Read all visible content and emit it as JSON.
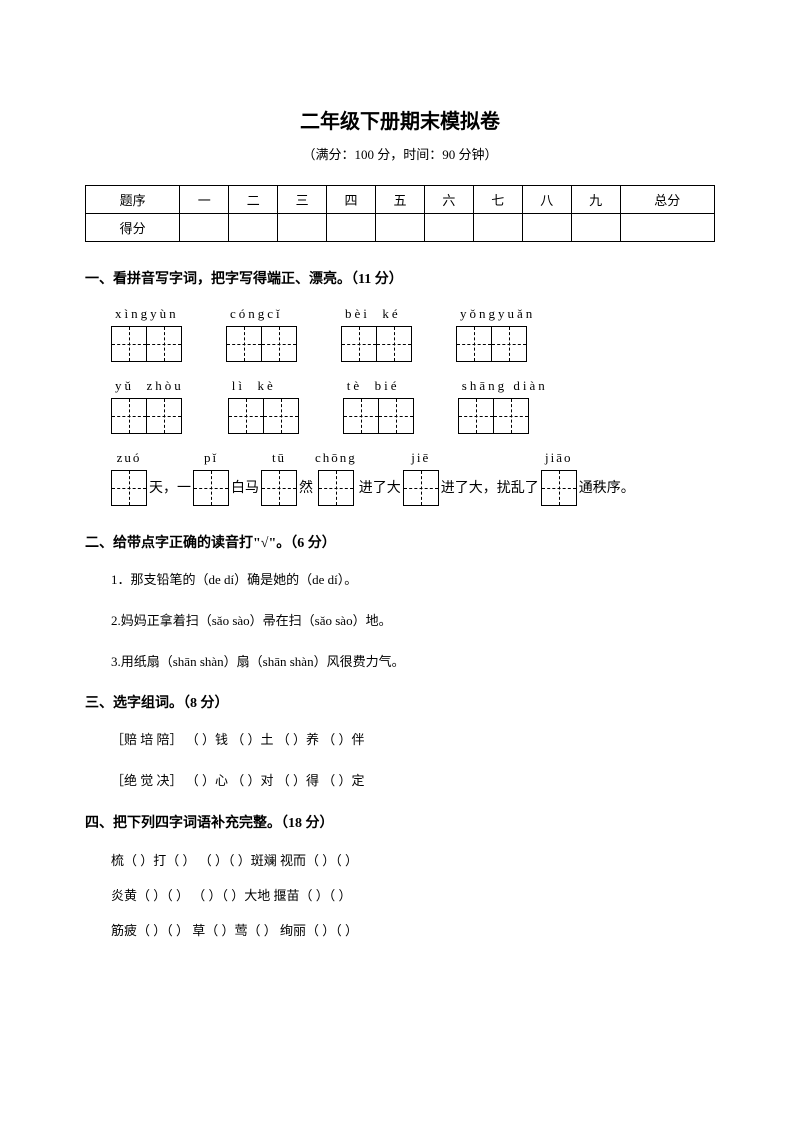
{
  "title": "二年级下册期末模拟卷",
  "subtitle": "（满分：100 分，时间：90 分钟）",
  "score_table": {
    "headers": [
      "题序",
      "一",
      "二",
      "三",
      "四",
      "五",
      "六",
      "七",
      "八",
      "九",
      "总分"
    ],
    "row_label": "得分"
  },
  "sec1": {
    "heading": "一、看拼音写字词，把字写得端正、漂亮。（11 分）",
    "row1": [
      {
        "pinyin": "xìngyùn",
        "boxes": 2
      },
      {
        "pinyin": "cóngcǐ",
        "boxes": 2
      },
      {
        "pinyin": "bèi  ké",
        "boxes": 2
      },
      {
        "pinyin": "yǒngyuǎn",
        "boxes": 2
      }
    ],
    "row2": [
      {
        "pinyin": "yǔ  zhòu",
        "boxes": 2
      },
      {
        "pinyin": "lì  kè",
        "boxes": 2
      },
      {
        "pinyin": "tè  bié",
        "boxes": 2
      },
      {
        "pinyin": "shāng diàn",
        "boxes": 2
      }
    ],
    "sentence": {
      "parts": [
        {
          "pinyin": "zuó",
          "boxes": 1
        },
        {
          "text": "天，一"
        },
        {
          "pinyin": "pǐ",
          "boxes": 1
        },
        {
          "text": "白马"
        },
        {
          "pinyin": "tū",
          "boxes": 1
        },
        {
          "text": "然"
        },
        {
          "pinyin": "chōng",
          "boxes": 1
        },
        {
          "text": "进了大"
        },
        {
          "pinyin": "jiē",
          "boxes": 1
        },
        {
          "text": "进了大，扰乱了"
        },
        {
          "pinyin": "jiāo",
          "boxes": 1
        },
        {
          "text": "通秩序。"
        }
      ]
    }
  },
  "sec2": {
    "heading": "二、给带点字正确的读音打\"√\"。（6 分）",
    "items": [
      "1．那支铅笔的（de dí）确是她的（de dí）。",
      "2.妈妈正拿着扫（sǎo sào）帚在扫（sǎo sào）地。",
      "3.用纸扇（shān shàn）扇（shān shàn）风很费力气。"
    ]
  },
  "sec3": {
    "heading": "三、选字组词。（8 分）",
    "lines": [
      "［赔  培  陪］    （        ）钱    （        ）土    （        ）养    （        ）伴",
      "［绝  觉  决］    （        ）心    （        ）对    （        ）得    （        ）定"
    ]
  },
  "sec4": {
    "heading": "四、把下列四字词语补充完整。（18 分）",
    "lines": [
      "梳（        ）打（        ）    （        ）（        ）斑斓        视而（        ）（        ）",
      "炎黄（        ）（        ）    （        ）（        ）大地        揠苗（        ）（        ）",
      "筋疲（        ）（        ）        草（        ）莺（        ）        绚丽（        ）（        ）"
    ]
  }
}
